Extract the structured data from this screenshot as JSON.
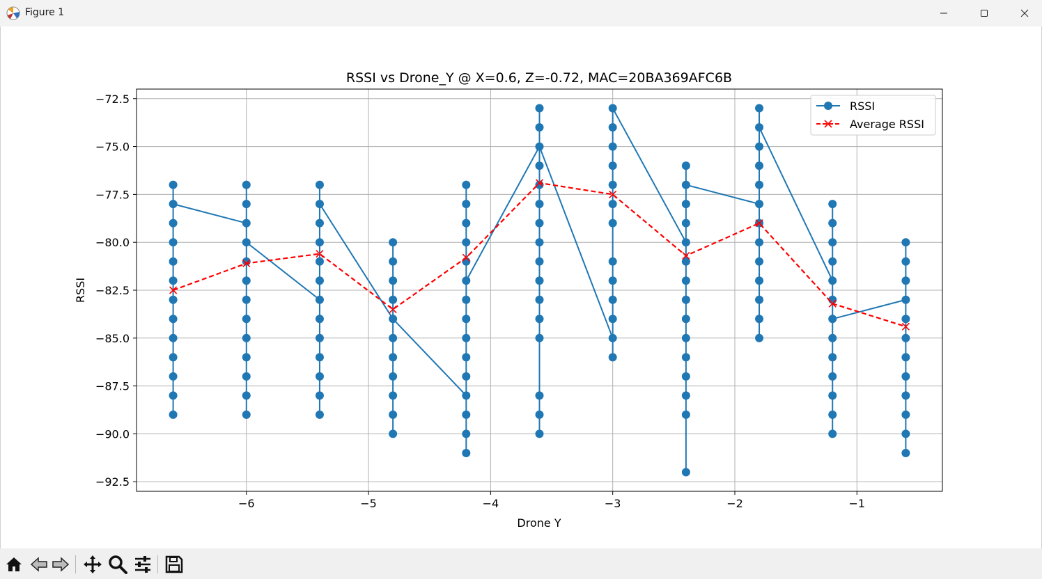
{
  "window": {
    "title": "Figure 1",
    "icons": [
      "app-icon",
      "minimize-icon",
      "maximize-icon",
      "close-icon"
    ]
  },
  "toolbar": {
    "buttons": [
      {
        "name": "home-icon"
      },
      {
        "name": "back-icon"
      },
      {
        "name": "forward-icon"
      },
      {
        "name": "pan-icon"
      },
      {
        "name": "zoom-icon"
      },
      {
        "name": "configure-subplots-icon"
      },
      {
        "name": "save-icon"
      }
    ]
  },
  "chart_data": {
    "type": "line",
    "title": "RSSI vs Drone_Y @ X=0.6, Z=-0.72, MAC=20BA369AFC6B",
    "xlabel": "Drone Y",
    "ylabel": "RSSI",
    "xlim": [
      -6.9,
      -0.3
    ],
    "ylim": [
      -93.0,
      -72.0
    ],
    "xticks": [
      -6,
      -5,
      -4,
      -3,
      -2,
      -1
    ],
    "xtick_labels": [
      "−6",
      "−5",
      "−4",
      "−3",
      "−2",
      "−1"
    ],
    "yticks": [
      -72.5,
      -75.0,
      -77.5,
      -80.0,
      -82.5,
      -85.0,
      -87.5,
      -90.0,
      -92.5
    ],
    "ytick_labels": [
      "−72.5",
      "−75.0",
      "−77.5",
      "−80.0",
      "−82.5",
      "−85.0",
      "−87.5",
      "−90.0",
      "−92.5"
    ],
    "grid": true,
    "legend_position": "top-right",
    "series": [
      {
        "name": "RSSI",
        "color": "#1f77b4",
        "style": "solid-circle-markers",
        "groups": [
          {
            "x": -6.6,
            "values": [
              -77,
              -78,
              -79,
              -80,
              -81,
              -82,
              -83,
              -84,
              -85,
              -86,
              -87,
              -88,
              -89
            ]
          },
          {
            "x": -6.0,
            "values": [
              -77,
              -78,
              -79,
              -80,
              -81,
              -82,
              -83,
              -84,
              -85,
              -86,
              -87,
              -88,
              -89
            ]
          },
          {
            "x": -5.4,
            "values": [
              -77,
              -78,
              -79,
              -80,
              -81,
              -82,
              -83,
              -84,
              -85,
              -86,
              -87,
              -88,
              -89
            ]
          },
          {
            "x": -4.8,
            "values": [
              -80,
              -81,
              -82,
              -83,
              -84,
              -85,
              -86,
              -87,
              -88,
              -89,
              -90
            ]
          },
          {
            "x": -4.2,
            "values": [
              -77,
              -78,
              -79,
              -80,
              -81,
              -82,
              -83,
              -84,
              -85,
              -86,
              -87,
              -88,
              -89,
              -90,
              -91
            ]
          },
          {
            "x": -3.6,
            "values": [
              -73,
              -74,
              -75,
              -76,
              -77,
              -78,
              -79,
              -80,
              -81,
              -82,
              -83,
              -84,
              -85,
              -88,
              -89,
              -90
            ]
          },
          {
            "x": -3.0,
            "values": [
              -73,
              -74,
              -75,
              -76,
              -77,
              -78,
              -79,
              -81,
              -82,
              -83,
              -84,
              -85,
              -86
            ]
          },
          {
            "x": -2.4,
            "values": [
              -76,
              -77,
              -78,
              -79,
              -80,
              -81,
              -82,
              -83,
              -84,
              -85,
              -86,
              -87,
              -88,
              -89,
              -92
            ]
          },
          {
            "x": -1.8,
            "values": [
              -73,
              -74,
              -75,
              -76,
              -77,
              -78,
              -79,
              -80,
              -81,
              -82,
              -83,
              -84,
              -85
            ]
          },
          {
            "x": -1.2,
            "values": [
              -78,
              -79,
              -80,
              -81,
              -82,
              -83,
              -84,
              -85,
              -86,
              -87,
              -88,
              -89,
              -90
            ]
          },
          {
            "x": -0.6,
            "values": [
              -80,
              -81,
              -82,
              -83,
              -84,
              -85,
              -86,
              -87,
              -88,
              -89,
              -90,
              -91
            ]
          }
        ],
        "connectors": [
          {
            "x": -6.6,
            "y": -78
          },
          {
            "x": -6.0,
            "y": -79
          },
          {
            "x": -6.0,
            "y": -80
          },
          {
            "x": -5.4,
            "y": -83
          },
          {
            "x": -5.4,
            "y": -78
          },
          {
            "x": -4.8,
            "y": -84
          },
          {
            "x": -4.8,
            "y": -84
          },
          {
            "x": -4.2,
            "y": -88
          },
          {
            "x": -4.2,
            "y": -82
          },
          {
            "x": -3.6,
            "y": -75
          },
          {
            "x": -3.6,
            "y": -75
          },
          {
            "x": -3.0,
            "y": -85
          },
          {
            "x": -3.0,
            "y": -73
          },
          {
            "x": -2.4,
            "y": -80
          },
          {
            "x": -2.4,
            "y": -77
          },
          {
            "x": -1.8,
            "y": -78
          },
          {
            "x": -1.8,
            "y": -74
          },
          {
            "x": -1.2,
            "y": -82
          },
          {
            "x": -1.2,
            "y": -84
          },
          {
            "x": -0.6,
            "y": -83
          }
        ]
      },
      {
        "name": "Average RSSI",
        "color": "#ff0000",
        "style": "dashed-x-markers",
        "x": [
          -6.6,
          -6.0,
          -5.4,
          -4.8,
          -4.2,
          -3.6,
          -3.0,
          -2.4,
          -1.8,
          -1.2,
          -0.6
        ],
        "values": [
          -82.5,
          -81.1,
          -80.6,
          -83.5,
          -80.8,
          -76.9,
          -77.5,
          -80.7,
          -79.0,
          -83.2,
          -84.4
        ]
      }
    ]
  }
}
